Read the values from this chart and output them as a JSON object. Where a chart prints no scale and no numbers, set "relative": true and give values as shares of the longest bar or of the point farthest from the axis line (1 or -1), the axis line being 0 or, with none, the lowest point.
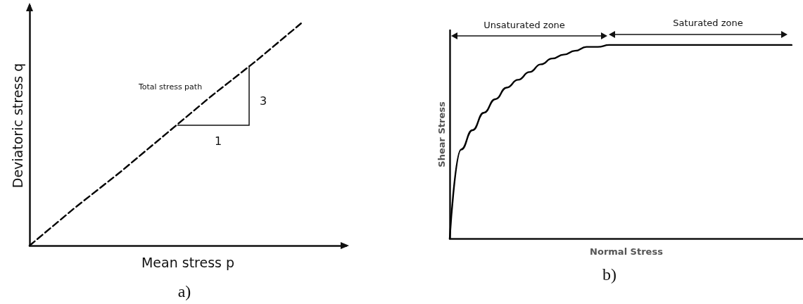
{
  "chart_data": [
    {
      "type": "line",
      "relative": true,
      "xlabel": "Mean stress p",
      "ylabel": "Deviatoric stress q",
      "line_style": "dashed",
      "categories": [
        null,
        null,
        null,
        null,
        null,
        null,
        null,
        null
      ],
      "series": [
        {
          "color": "#000000",
          "values": [
            0,
            0.17,
            0.33,
            0.5,
            0.67,
            0.83,
            1,
            null
          ]
        }
      ],
      "annotations": [
        "Total stress path",
        "3",
        "1",
        "a)"
      ]
    },
    {
      "type": "line",
      "relative": true,
      "xlabel": "Normal Stress",
      "ylabel": "Shear Stress",
      "line_style": "solid",
      "categories": [
        null,
        null,
        null,
        null,
        null,
        null,
        null,
        null,
        null,
        null,
        null,
        null,
        null,
        null,
        null,
        null,
        null,
        null,
        null,
        null,
        null,
        null,
        null,
        null,
        null,
        null,
        null,
        null,
        null,
        null,
        null,
        null
      ],
      "series": [
        {
          "color": "#000000",
          "values": [
            0,
            0.46,
            0.56,
            0.65,
            0.72,
            0.78,
            0.82,
            0.86,
            0.9,
            0.93,
            0.95,
            0.97,
            0.99,
            0.99,
            1,
            1,
            1,
            1,
            1,
            1,
            1,
            1,
            1,
            1,
            1,
            1,
            1,
            1,
            1,
            1,
            1,
            null
          ]
        }
      ],
      "annotations": [
        "Unsaturated zone",
        "Saturated zone",
        "b)"
      ]
    }
  ]
}
